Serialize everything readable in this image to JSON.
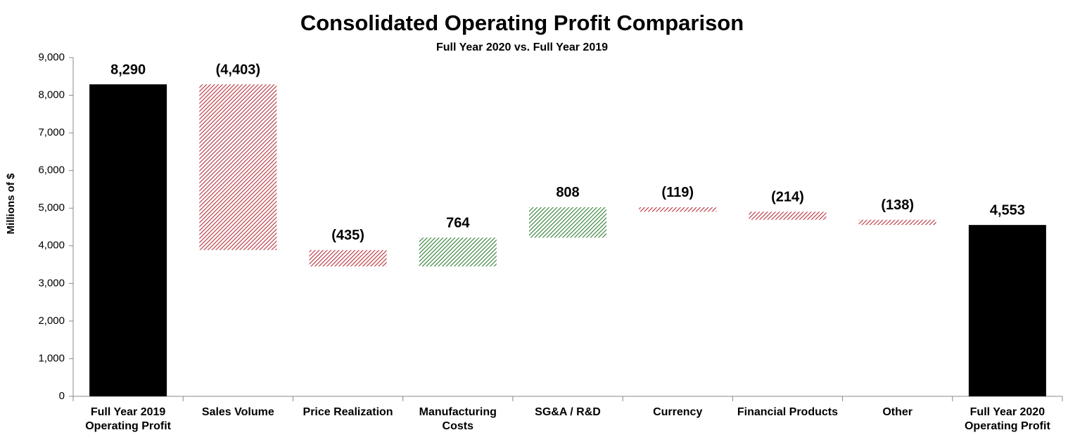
{
  "chart_data": {
    "type": "waterfall",
    "title": "Consolidated Operating Profit Comparison",
    "subtitle": "Full Year 2020 vs. Full Year 2019",
    "y_label": "Millions of $",
    "categories": [
      "Full Year 2019\nOperating Profit",
      "Sales Volume",
      "Price Realization",
      "Manufacturing Costs",
      "SG&A / R&D",
      "Currency",
      "Financial Products",
      "Other",
      "Full Year 2020\nOperating Profit"
    ],
    "measure": [
      "total",
      "relative",
      "relative",
      "relative",
      "relative",
      "relative",
      "relative",
      "relative",
      "total"
    ],
    "values": [
      8290,
      -4403,
      -435,
      764,
      808,
      -119,
      -214,
      -138,
      4553
    ],
    "value_labels": [
      "8,290",
      "(4,403)",
      "(435)",
      "764",
      "808",
      "(119)",
      "(214)",
      "(138)",
      "4,553"
    ],
    "total_color": "#000000",
    "increase_color": "#2e7d32",
    "decrease_color": "#b5303a",
    "hatched": true,
    "ylim": [
      0,
      9000
    ],
    "yticks": [
      0,
      {
        "value": 1000,
        "label": "1,000"
      },
      {
        "value": 2000,
        "label": "2,000"
      },
      {
        "value": 3000,
        "label": "3,000"
      },
      {
        "value": 4000,
        "label": "4,000"
      },
      {
        "value": 5000,
        "label": "5,000"
      },
      {
        "value": 6000,
        "label": "6,000"
      },
      {
        "value": 7000,
        "label": "7,000"
      },
      {
        "value": 8000,
        "label": "8,000"
      },
      {
        "value": 9000,
        "label": "9,000"
      }
    ],
    "grid": false
  }
}
